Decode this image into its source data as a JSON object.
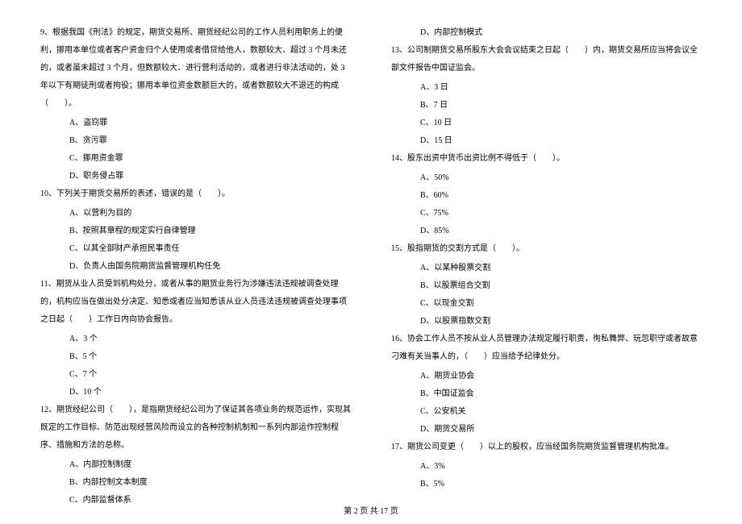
{
  "left_column": {
    "q9": {
      "text": "9、根据我国《刑法》的规定，期货交易所、期货经纪公司的工作人员利用职务上的便利，挪用本单位或者客户资金归个人使用或者借贷给他人，数额较大、超过 3 个月未还的，或者虽未超过 3 个月，但数额较大、进行营利活动的，或者进行非法活动的，处 3 年以下有期徒刑或者拘役；挪用本单位资金数额巨大的，或者数额较大不退还的构成（　　）。",
      "options": {
        "A": "A、盗窃罪",
        "B": "B、贪污罪",
        "C": "C、挪用资金罪",
        "D": "D、职务侵占罪"
      }
    },
    "q10": {
      "text": "10、下列关于期货交易所的表述，错误的是（　　）。",
      "options": {
        "A": "A、以营利为目的",
        "B": "B、按照其章程的规定实行自律管理",
        "C": "C、以其全部财产承担民事责任",
        "D": "D、负责人由国务院期货监督管理机构任免"
      }
    },
    "q11": {
      "text": "11、期货从业人员受到机构处分，或者从事的期货业务行为涉嫌违法违规被调查处理的，机构应当在做出处分决定、知悉或者应当知悉该从业人员违法违规被调查处理事项之日起（　　）工作日内向协会报告。",
      "options": {
        "A": "A、3 个",
        "B": "B、5 个",
        "C": "C、7 个",
        "D": "D、10 个"
      }
    },
    "q12": {
      "text": "12、期货经纪公司（　　），是指期货经纪公司为了保证其各项业务的规范运作，实现其既定的工作目标、防范出现经营风险而设立的各种控制机制和一系列内部运作控制程序、措施和方法的总称。",
      "options": {
        "A": "A、内部控制制度",
        "B": "B、内部控制文本制度",
        "C": "C、内部监督体系"
      }
    }
  },
  "right_column": {
    "q12d": "D、内部控制模式",
    "q13": {
      "text": "13、公司制期货交易所股东大会会议结束之日起（　　）内，期货交易所应当将会议全部文件报告中国证监会。",
      "options": {
        "A": "A、3 日",
        "B": "B、7 日",
        "C": "C、10 日",
        "D": "D、15 日"
      }
    },
    "q14": {
      "text": "14、股东出资中货币出资比例不得低于（　　）。",
      "options": {
        "A": "A、50%",
        "B": "B、60%",
        "C": "C、75%",
        "D": "D、85%"
      }
    },
    "q15": {
      "text": "15、股指期货的交割方式是（　　）。",
      "options": {
        "A": "A、以某种股票交割",
        "B": "B、以股票组合交割",
        "C": "C、以现金交割",
        "D": "D、以股票指数交割"
      }
    },
    "q16": {
      "text": "16、协会工作人员不按从业人员管理办法规定履行职责，徇私舞弊、玩忽职守或者故意刁难有关当事人的，（　　）应当给予纪律处分。",
      "options": {
        "A": "A、期货业协会",
        "B": "B、中国证监会",
        "C": "C、公安机关",
        "D": "D、期货交易所"
      }
    },
    "q17": {
      "text": "17、期货公司变更（　　）以上的股权，应当经国务院期货监督管理机构批准。",
      "options": {
        "A": "A、3%",
        "B": "B、5%"
      }
    }
  },
  "footer": "第 2 页 共 17 页"
}
